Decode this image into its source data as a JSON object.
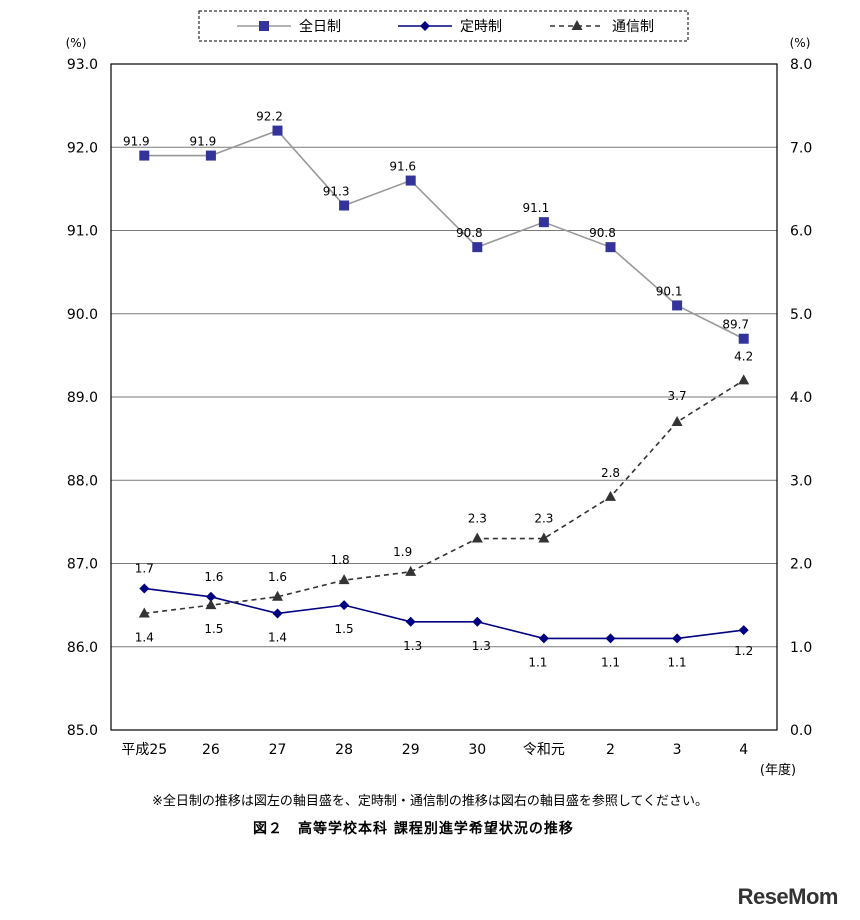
{
  "chart_data": {
    "type": "line",
    "title": "図２　高等学校本科 課程別進学希望状況の推移",
    "note": "※全日制の推移は図左の軸目盛を、定時制・通信制の推移は図右の軸目盛を参照してください。",
    "categories": [
      "平成25",
      "26",
      "27",
      "28",
      "29",
      "30",
      "令和元",
      "2",
      "3",
      "4"
    ],
    "xlabel": "(年度)",
    "ylabel_left": "(%)",
    "ylabel_right": "(%)",
    "ylim_left": [
      85.0,
      93.0
    ],
    "ylim_right": [
      0.0,
      8.0
    ],
    "yticks_left": [
      "85.0",
      "86.0",
      "87.0",
      "88.0",
      "89.0",
      "90.0",
      "91.0",
      "92.0",
      "93.0"
    ],
    "yticks_right": [
      "0.0",
      "1.0",
      "2.0",
      "3.0",
      "4.0",
      "5.0",
      "6.0",
      "7.0",
      "8.0"
    ],
    "grid": true,
    "legend_position": "top-center",
    "series": [
      {
        "name": "全日制",
        "axis": "left",
        "marker": "square",
        "line_style": "solid",
        "line_color": "#999999",
        "marker_color": "#333399",
        "values": [
          91.9,
          91.9,
          92.2,
          91.3,
          91.6,
          90.8,
          91.1,
          90.8,
          90.1,
          89.7
        ],
        "labels": [
          "91.9",
          "91.9",
          "92.2",
          "91.3",
          "91.6",
          "90.8",
          "91.1",
          "90.8",
          "90.1",
          "89.7"
        ]
      },
      {
        "name": "定時制",
        "axis": "right",
        "marker": "diamond",
        "line_style": "solid",
        "line_color": "#000080",
        "marker_color": "#000080",
        "values": [
          1.7,
          1.6,
          1.4,
          1.5,
          1.3,
          1.3,
          1.1,
          1.1,
          1.1,
          1.2
        ],
        "labels": [
          "1.7",
          "1.6",
          "1.4",
          "1.5",
          "1.3",
          "1.3",
          "1.1",
          "1.1",
          "1.1",
          "1.2"
        ]
      },
      {
        "name": "通信制",
        "axis": "right",
        "marker": "triangle",
        "line_style": "dashed",
        "line_color": "#333333",
        "marker_color": "#333333",
        "values": [
          1.4,
          1.5,
          1.6,
          1.8,
          1.9,
          2.3,
          2.3,
          2.8,
          3.7,
          4.2
        ],
        "labels": [
          "1.4",
          "1.5",
          "1.6",
          "1.8",
          "1.9",
          "2.3",
          "2.3",
          "2.8",
          "3.7",
          "4.2"
        ]
      }
    ]
  },
  "watermark": "ReseMom"
}
